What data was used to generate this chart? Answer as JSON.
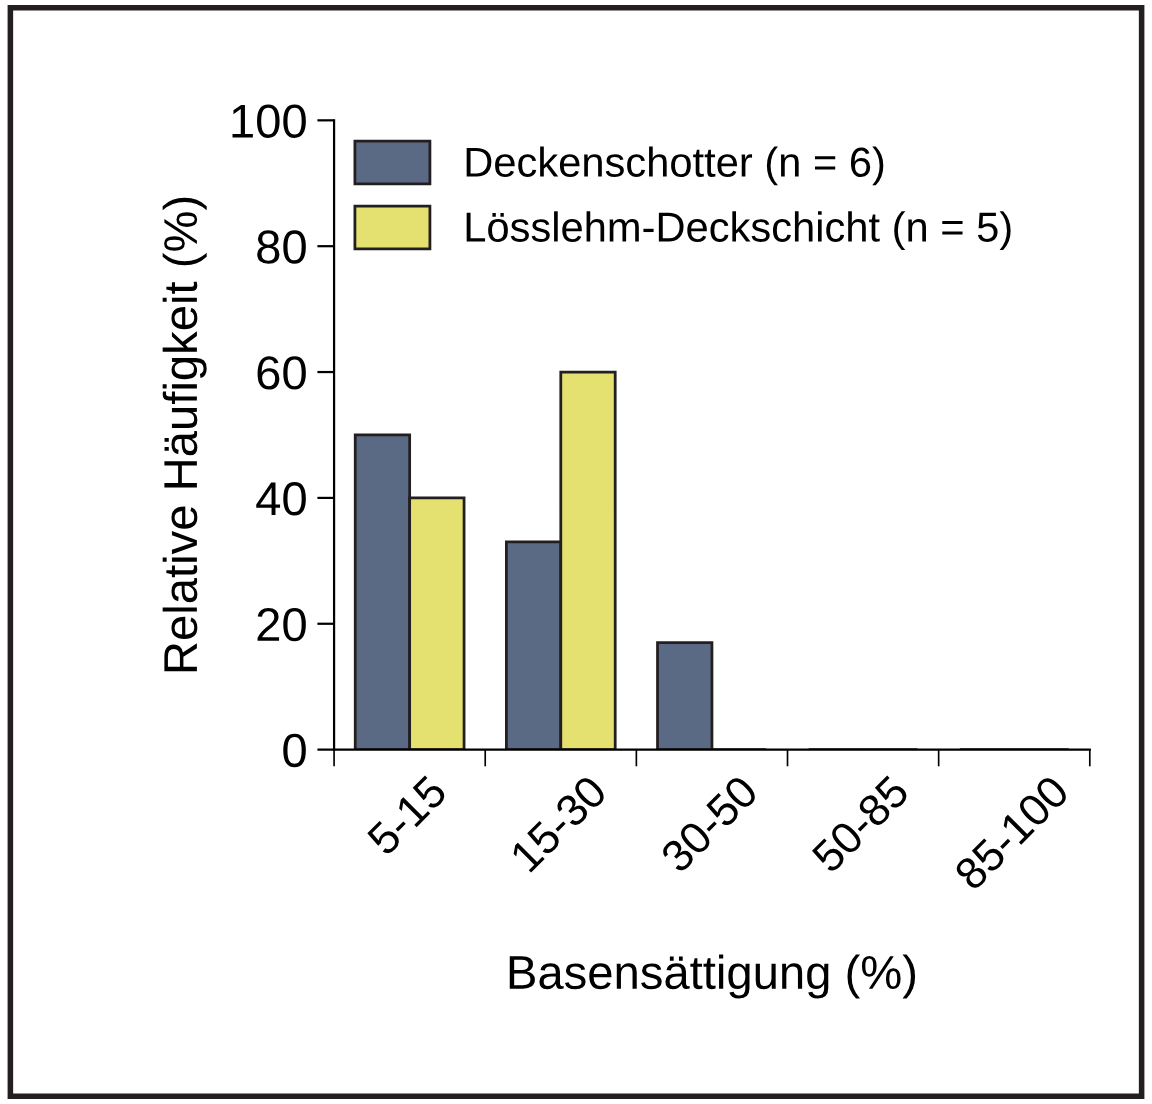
{
  "chart_data": {
    "type": "bar",
    "xlabel": "Basensättigung (%)",
    "ylabel": "Relative Häufigkeit (%)",
    "categories": [
      "5-15",
      "15-30",
      "30-50",
      "50-85",
      "85-100"
    ],
    "series": [
      {
        "name": "Deckenschotter (n = 6)",
        "color": "#5b6a84",
        "values": [
          50,
          33,
          17,
          0,
          0
        ]
      },
      {
        "name": "Lösslehm-Deckschicht (n = 5)",
        "color": "#e5e170",
        "values": [
          40,
          60,
          0,
          0,
          0
        ]
      }
    ],
    "ylim": [
      0,
      100
    ],
    "yticks": [
      0,
      20,
      40,
      60,
      80,
      100
    ],
    "grid": false,
    "legend": "top left"
  }
}
